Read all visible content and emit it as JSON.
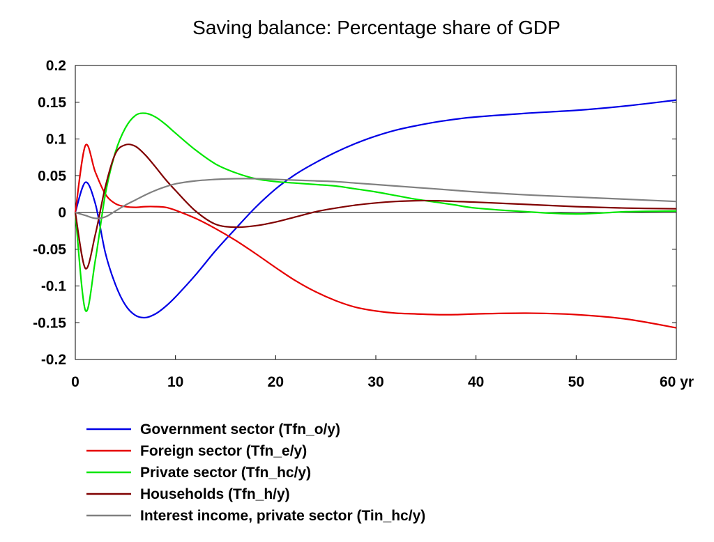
{
  "chart_data": {
    "type": "line",
    "title": "Saving balance: Percentage share of GDP",
    "xlabel": "",
    "ylabel": "",
    "x_unit_label": "yr",
    "xlim": [
      0,
      60
    ],
    "ylim": [
      -0.2,
      0.2
    ],
    "x_ticks": [
      0,
      10,
      20,
      30,
      40,
      50,
      60
    ],
    "x_tick_labels": [
      "0",
      "10",
      "20",
      "30",
      "40",
      "50",
      "60 yr"
    ],
    "y_ticks": [
      -0.2,
      -0.15,
      -0.1,
      -0.05,
      0,
      0.05,
      0.1,
      0.15,
      0.2
    ],
    "y_tick_labels": [
      "-0.2",
      "-0.15",
      "-0.1",
      "-0.05",
      "0",
      "0.05",
      "0.1",
      "0.15",
      "0.2"
    ],
    "grid": false,
    "zero_line": true,
    "legend_position": "bottom",
    "series": [
      {
        "name": "Government sector (Tfn_o/y)",
        "color": "#0000e6",
        "x": [
          0,
          1,
          2,
          3,
          4,
          5,
          6,
          7,
          8,
          9,
          10,
          12,
          14,
          16,
          18,
          20,
          22,
          24,
          26,
          28,
          30,
          32,
          34,
          36,
          38,
          40,
          45,
          50,
          55,
          60
        ],
        "y": [
          0,
          0.041,
          0.012,
          -0.055,
          -0.098,
          -0.126,
          -0.14,
          -0.143,
          -0.138,
          -0.128,
          -0.115,
          -0.085,
          -0.052,
          -0.022,
          0.007,
          0.032,
          0.052,
          0.068,
          0.082,
          0.094,
          0.104,
          0.112,
          0.118,
          0.123,
          0.127,
          0.13,
          0.135,
          0.139,
          0.145,
          0.153
        ]
      },
      {
        "name": "Foreign sector (Tfn_e/y)",
        "color": "#e60000",
        "x": [
          0,
          1,
          2,
          3,
          4,
          5,
          6,
          7,
          8,
          9,
          10,
          12,
          14,
          16,
          18,
          20,
          22,
          24,
          26,
          28,
          30,
          32,
          34,
          36,
          38,
          40,
          45,
          50,
          55,
          60
        ],
        "y": [
          0,
          0.091,
          0.055,
          0.025,
          0.012,
          0.008,
          0.007,
          0.008,
          0.008,
          0.007,
          0.003,
          -0.008,
          -0.022,
          -0.038,
          -0.056,
          -0.075,
          -0.093,
          -0.108,
          -0.12,
          -0.129,
          -0.134,
          -0.137,
          -0.138,
          -0.139,
          -0.139,
          -0.138,
          -0.137,
          -0.139,
          -0.145,
          -0.157
        ]
      },
      {
        "name": "Private sector (Tfn_hc/y)",
        "color": "#00e600",
        "x": [
          0,
          1,
          2,
          3,
          4,
          5,
          6,
          7,
          8,
          9,
          10,
          12,
          14,
          16,
          18,
          20,
          22,
          24,
          26,
          28,
          30,
          32,
          34,
          36,
          38,
          40,
          45,
          50,
          55,
          60
        ],
        "y": [
          0,
          -0.133,
          -0.065,
          0.025,
          0.082,
          0.115,
          0.132,
          0.135,
          0.13,
          0.12,
          0.108,
          0.085,
          0.066,
          0.054,
          0.046,
          0.042,
          0.04,
          0.038,
          0.036,
          0.032,
          0.028,
          0.023,
          0.018,
          0.014,
          0.01,
          0.006,
          0.001,
          -0.002,
          0.001,
          0.002
        ]
      },
      {
        "name": "Households (Tfn_h/y)",
        "color": "#800000",
        "x": [
          0,
          1,
          2,
          3,
          4,
          5,
          6,
          7,
          8,
          9,
          10,
          12,
          14,
          16,
          18,
          20,
          22,
          24,
          26,
          28,
          30,
          32,
          34,
          36,
          38,
          40,
          45,
          50,
          55,
          60
        ],
        "y": [
          0,
          -0.076,
          -0.03,
          0.035,
          0.08,
          0.092,
          0.09,
          0.078,
          0.062,
          0.045,
          0.03,
          0.002,
          -0.016,
          -0.02,
          -0.018,
          -0.013,
          -0.006,
          0.001,
          0.006,
          0.01,
          0.013,
          0.015,
          0.016,
          0.016,
          0.015,
          0.014,
          0.011,
          0.008,
          0.006,
          0.005
        ]
      },
      {
        "name": "Interest income, private sector (Tin_hc/y)",
        "color": "#808080",
        "x": [
          0,
          1,
          2,
          3,
          4,
          5,
          6,
          7,
          8,
          9,
          10,
          12,
          14,
          16,
          18,
          20,
          22,
          24,
          26,
          28,
          30,
          32,
          34,
          36,
          38,
          40,
          45,
          50,
          55,
          60
        ],
        "y": [
          0,
          -0.004,
          -0.008,
          -0.006,
          0.002,
          0.01,
          0.017,
          0.024,
          0.03,
          0.035,
          0.039,
          0.043,
          0.045,
          0.046,
          0.046,
          0.045,
          0.044,
          0.043,
          0.042,
          0.04,
          0.038,
          0.036,
          0.034,
          0.032,
          0.03,
          0.028,
          0.024,
          0.021,
          0.018,
          0.015
        ]
      }
    ]
  }
}
